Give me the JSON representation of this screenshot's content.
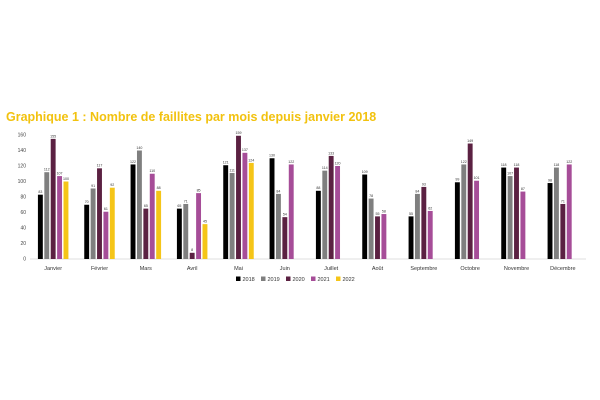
{
  "chart_title": "Graphique 1 : Nombre de faillites par mois depuis janvier 2018",
  "chart_data": {
    "type": "bar",
    "title": "Graphique 1 : Nombre de faillites par mois depuis janvier 2018",
    "xlabel": "",
    "ylabel": "",
    "ylim": [
      0,
      160
    ],
    "yticks": [
      0,
      20,
      40,
      60,
      80,
      100,
      120,
      140,
      160
    ],
    "grid": false,
    "legend_position": "bottom",
    "categories": [
      "Janvier",
      "Février",
      "Mars",
      "Avril",
      "Mai",
      "Juin",
      "Juillet",
      "Août",
      "Septembre",
      "Octobre",
      "Novembre",
      "Décembre"
    ],
    "series": [
      {
        "name": "2018",
        "color": "#000000",
        "values": [
          83,
          70,
          122,
          65,
          121,
          130,
          88,
          109,
          55,
          99,
          118,
          98
        ]
      },
      {
        "name": "2019",
        "color": "#7f7f7f",
        "values": [
          112,
          91,
          140,
          71,
          111,
          84,
          114,
          78,
          84,
          122,
          107,
          118
        ]
      },
      {
        "name": "2020",
        "color": "#5b2142",
        "values": [
          155,
          117,
          65,
          8,
          159,
          54,
          133,
          55,
          93,
          149,
          118,
          71
        ]
      },
      {
        "name": "2021",
        "color": "#a64d98",
        "values": [
          107,
          61,
          110,
          85,
          137,
          122,
          120,
          58,
          62,
          101,
          87,
          122
        ]
      },
      {
        "name": "2022",
        "color": "#f5c518",
        "values": [
          100,
          92,
          88,
          45,
          124,
          null,
          null,
          null,
          null,
          null,
          null,
          null
        ]
      }
    ]
  }
}
